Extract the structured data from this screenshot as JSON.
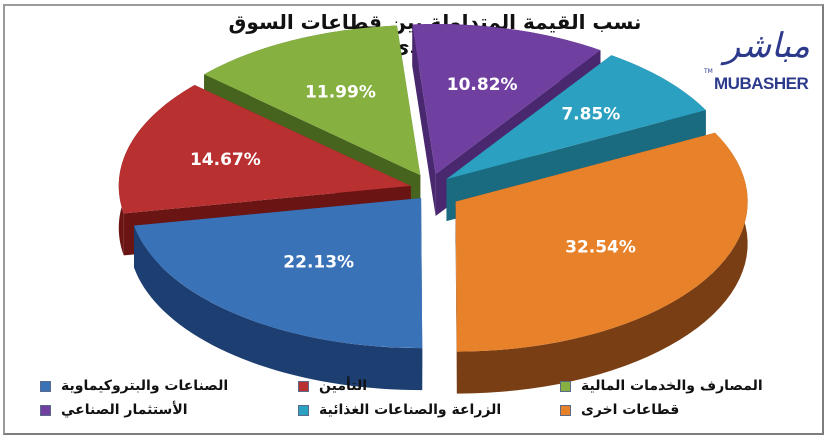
{
  "title": "نسب القيمة المتداولة بين قطاعات السوق السعودي",
  "logo": {
    "arabic": "مباشر",
    "english": "MUBASHER",
    "tm": "TM",
    "color": "#2d3a8c"
  },
  "chart_data": {
    "type": "pie",
    "subtype": "3d-exploded",
    "title": "نسب القيمة المتداولة بين قطاعات السوق السعودي",
    "unit": "%",
    "legend_position": "bottom",
    "slices": [
      {
        "label": "الأستثمار الصناعي",
        "value": 10.82,
        "display": "10.82%",
        "color": "#7040a0",
        "side": "#4a2870"
      },
      {
        "label": "الزراعة والصناعات الغذائية",
        "value": 7.85,
        "display": "7.85%",
        "color": "#2ba0c0",
        "side": "#1a6a80"
      },
      {
        "label": "قطاعات اخرى",
        "value": 32.54,
        "display": "32.54%",
        "color": "#e8822a",
        "side": "#7a3e14"
      },
      {
        "label": "الصناعات والبتروكيماوية",
        "value": 22.13,
        "display": "22.13%",
        "color": "#3a72b8",
        "side": "#1c3e70"
      },
      {
        "label": "التأمين",
        "value": 14.67,
        "display": "14.67%",
        "color": "#b83030",
        "side": "#6a1414"
      },
      {
        "label": "المصارف والخدمات المالية",
        "value": 11.99,
        "display": "11.99%",
        "color": "#86b040",
        "side": "#46641e"
      }
    ]
  },
  "legend": {
    "row1": [
      {
        "label": "الصناعات والبتروكيماوية",
        "color": "#3a72b8"
      },
      {
        "label": "التأمين",
        "color": "#b83030"
      },
      {
        "label": "المصارف والخدمات المالية",
        "color": "#86b040"
      }
    ],
    "row2": [
      {
        "label": "الأستثمار الصناعي",
        "color": "#7040a0"
      },
      {
        "label": "الزراعة والصناعات الغذائية",
        "color": "#2ba0c0"
      },
      {
        "label": "قطاعات اخرى",
        "color": "#e8822a"
      }
    ]
  }
}
